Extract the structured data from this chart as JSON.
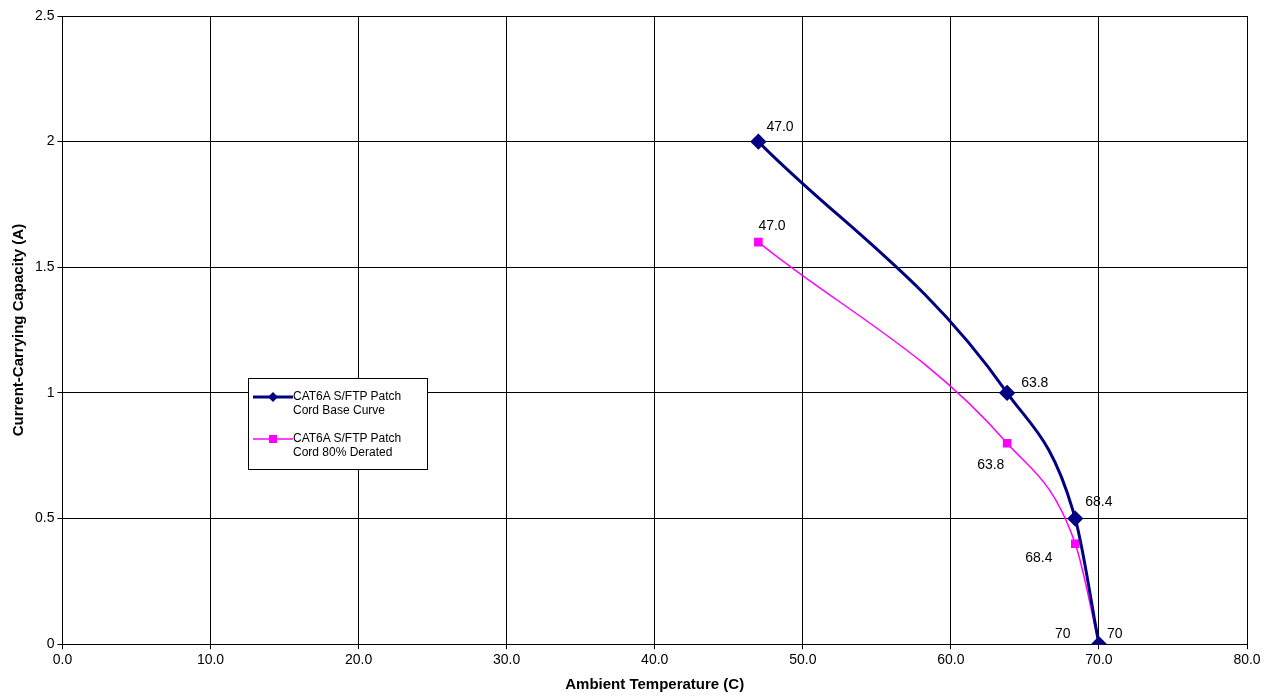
{
  "chart_data": {
    "type": "line",
    "xlabel": "Ambient Temperature (C)",
    "ylabel": "Current-Carrying Capacity (A)",
    "annotations": [
      {
        "text": "47.0",
        "x": 47,
        "y": 2
      },
      {
        "text": "63.8",
        "x": 63.8,
        "y": 1
      },
      {
        "text": "68.4",
        "x": 68.4,
        "y": 0.5
      },
      {
        "text": "70",
        "x": 70,
        "y": 0
      },
      {
        "text": "47.0",
        "x": 47,
        "y": 1.6
      },
      {
        "text": "63.8",
        "x": 63.8,
        "y": 0.8
      },
      {
        "text": "68.4",
        "x": 68.4,
        "y": 0.4
      },
      {
        "text": "70",
        "x": 70,
        "y": 0
      }
    ],
    "xlim": [
      0,
      80
    ],
    "xticks": [
      {
        "value": 0,
        "label": "0.0"
      },
      {
        "value": 10,
        "label": "10.0"
      },
      {
        "value": 20,
        "label": "20.0"
      },
      {
        "value": 30,
        "label": "30.0"
      },
      {
        "value": 40,
        "label": "40.0"
      },
      {
        "value": 50,
        "label": "50.0"
      },
      {
        "value": 60,
        "label": "60.0"
      },
      {
        "value": 70,
        "label": "70.0"
      },
      {
        "value": 80,
        "label": "80.0"
      }
    ],
    "ylim": [
      0,
      2.5
    ],
    "yticks": [
      0,
      0.5,
      1,
      1.5,
      2,
      2.5
    ],
    "grid": true,
    "legend": "left",
    "series": [
      {
        "name": "CAT6A S/FTP Patch Cord Base Curve",
        "color": "#000080",
        "marker": "diamond",
        "x": [
          47,
          63.8,
          68.4,
          70
        ],
        "values": [
          2,
          1,
          0.5,
          0
        ]
      },
      {
        "name": "CAT6A S/FTP Patch Cord 80% Derated",
        "color": "#ff00ff",
        "marker": "square",
        "x": [
          47,
          63.8,
          68.4,
          70
        ],
        "values": [
          1.6,
          0.8,
          0.4,
          0
        ]
      }
    ]
  }
}
